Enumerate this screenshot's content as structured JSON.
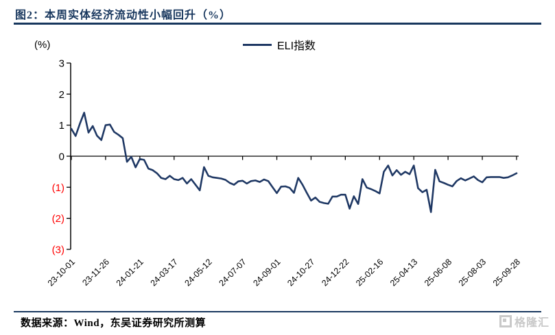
{
  "figure": {
    "title": "图2：本周实体经济流动性小幅回升（%）",
    "source": "数据来源：Wind，东吴证券研究所测算",
    "watermark": "格隆汇"
  },
  "unit_label": "(%)",
  "legend": {
    "label": "ELI指数"
  },
  "colors": {
    "line": "#1F3864",
    "title_navy": "#17365D",
    "negative_tick": "#FF0000",
    "axis": "#000000",
    "watermark_gray": "#c9c9c9"
  },
  "chart_data": {
    "type": "line",
    "title": "本周实体经济流动性小幅回升（%）",
    "ylabel": "(%)",
    "ylim": [
      -3,
      3
    ],
    "grid": false,
    "legend_position": "top-center",
    "y_ticks": [
      {
        "value": 3,
        "label": "3",
        "color": "#000000"
      },
      {
        "value": 2,
        "label": "2",
        "color": "#000000"
      },
      {
        "value": 1,
        "label": "1",
        "color": "#000000"
      },
      {
        "value": 0,
        "label": "0",
        "color": "#000000"
      },
      {
        "value": -1,
        "label": "(1)",
        "color": "#FF0000"
      },
      {
        "value": -2,
        "label": "(2)",
        "color": "#FF0000"
      },
      {
        "value": -3,
        "label": "(3)",
        "color": "#FF0000"
      }
    ],
    "x_tick_labels": [
      "23-10-01",
      "23-11-26",
      "24-01-21",
      "24-03-17",
      "24-05-12",
      "24-07-07",
      "24-09-01",
      "24-10-27",
      "24-12-22",
      "25-02-16",
      "25-04-13",
      "25-06-08",
      "25-08-03",
      "25-09-28"
    ],
    "x_tick_step": 8,
    "x_unit": "week",
    "series": [
      {
        "name": "ELI指数",
        "color": "#1F3864",
        "values": [
          0.88,
          0.65,
          1.05,
          1.4,
          0.76,
          0.97,
          0.66,
          0.52,
          1.0,
          1.02,
          0.78,
          0.69,
          0.58,
          -0.18,
          -0.02,
          -0.36,
          -0.09,
          -0.12,
          -0.4,
          -0.45,
          -0.55,
          -0.7,
          -0.74,
          -0.63,
          -0.74,
          -0.77,
          -0.7,
          -0.88,
          -0.74,
          -0.92,
          -1.1,
          -0.35,
          -0.63,
          -0.68,
          -0.7,
          -0.72,
          -0.76,
          -0.86,
          -0.92,
          -0.81,
          -0.79,
          -0.88,
          -0.8,
          -0.78,
          -0.83,
          -0.75,
          -0.8,
          -1.0,
          -1.19,
          -0.98,
          -0.97,
          -1.02,
          -1.18,
          -0.7,
          -0.92,
          -1.18,
          -1.43,
          -1.33,
          -1.47,
          -1.51,
          -1.53,
          -1.3,
          -1.3,
          -1.24,
          -1.24,
          -1.69,
          -1.29,
          -1.54,
          -0.74,
          -1.01,
          -1.06,
          -1.12,
          -1.2,
          -0.5,
          -0.3,
          -0.62,
          -0.45,
          -0.6,
          -0.5,
          -0.58,
          -0.3,
          -1.03,
          -1.16,
          -1.08,
          -1.8,
          -0.44,
          -0.81,
          -0.86,
          -0.92,
          -0.97,
          -0.8,
          -0.71,
          -0.78,
          -0.72,
          -0.65,
          -0.77,
          -0.84,
          -0.68,
          -0.67,
          -0.67,
          -0.67,
          -0.7,
          -0.68,
          -0.62,
          -0.55
        ]
      }
    ]
  }
}
